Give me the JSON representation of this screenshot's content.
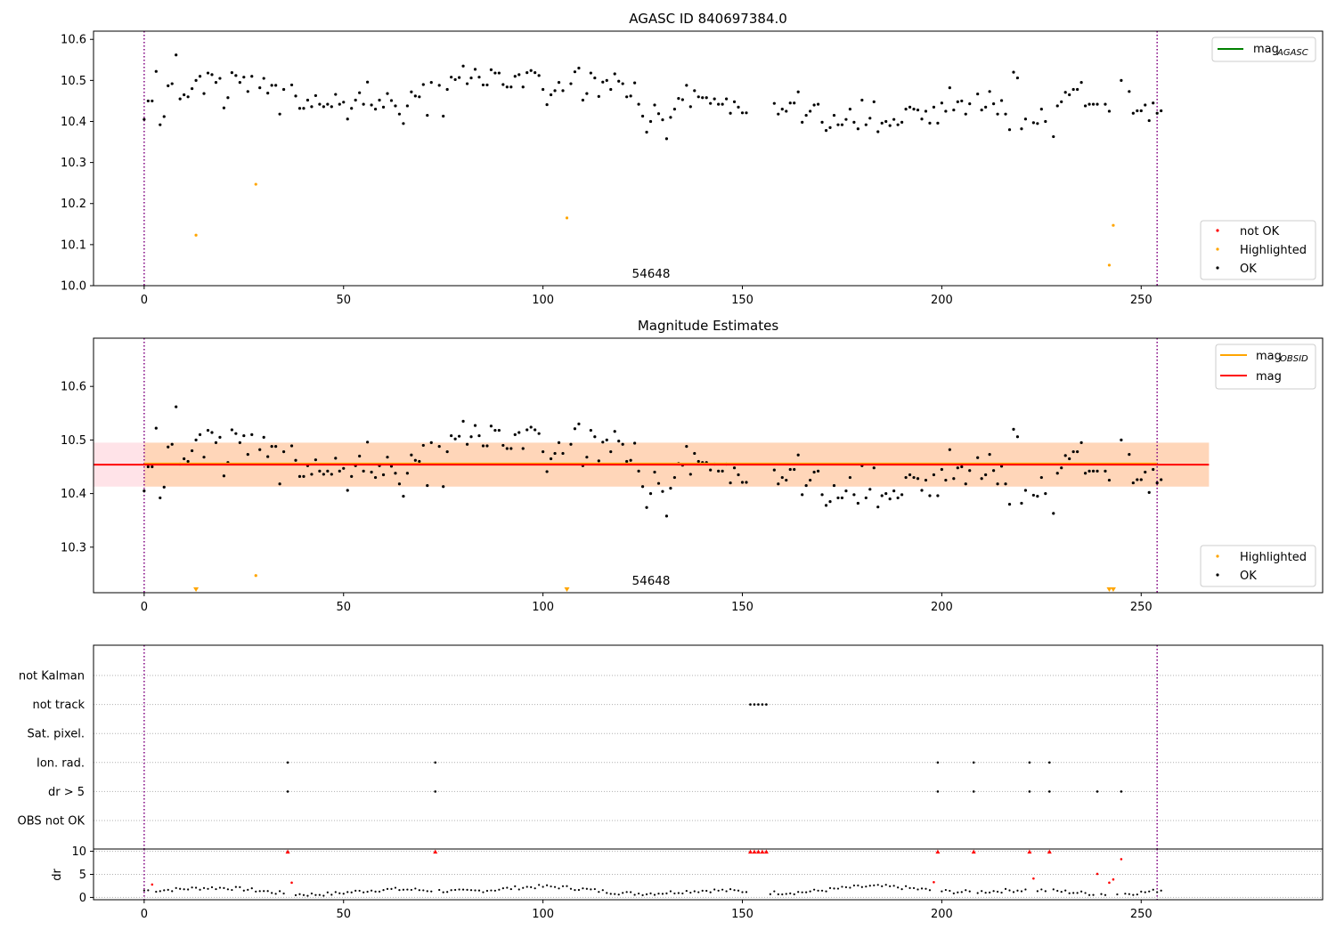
{
  "chart_data": [
    {
      "type": "scatter",
      "title": "AGASC ID 840697384.0",
      "xlabel": "",
      "ylabel": "",
      "xlim": [
        -12.7,
        295.5
      ],
      "ylim": [
        10.0,
        10.62
      ],
      "xticks": [
        0,
        50,
        100,
        150,
        200,
        250
      ],
      "yticks": [
        10.0,
        10.1,
        10.2,
        10.3,
        10.4,
        10.5,
        10.6
      ],
      "grid": false,
      "vlines": [
        0,
        254
      ],
      "annotation": {
        "text": "54648",
        "x": 127,
        "y": 10.02
      },
      "line_legend": {
        "placement": "top-right",
        "entries": [
          {
            "label": "mag",
            "sub": "AGASC",
            "color": "#008000"
          }
        ]
      },
      "marker_legend": {
        "placement": "bottom-right",
        "entries": [
          {
            "label": "not OK",
            "color": "#ff0000"
          },
          {
            "label": "Highlighted",
            "color": "#ffa500"
          },
          {
            "label": "OK",
            "color": "#000000"
          }
        ]
      },
      "highlighted_points": [
        [
          13,
          10.123
        ],
        [
          28,
          10.247
        ],
        [
          106,
          10.165
        ],
        [
          242,
          10.05
        ],
        [
          243,
          10.147
        ]
      ],
      "ok_series": {
        "name": "OK",
        "x_start": 0,
        "x_step": 1,
        "y": [
          10.405,
          10.45,
          10.45,
          10.522,
          10.392,
          10.412,
          10.487,
          10.492,
          10.562,
          10.455,
          10.465,
          10.46,
          10.48,
          10.5,
          10.51,
          10.468,
          10.518,
          10.514,
          10.495,
          10.505,
          10.433,
          10.458,
          10.519,
          10.512,
          10.495,
          10.508,
          10.473,
          10.51,
          null,
          10.482,
          10.505,
          10.469,
          10.488,
          10.488,
          10.418,
          10.478,
          null,
          10.489,
          10.462,
          10.432,
          10.432,
          10.452,
          10.436,
          10.463,
          10.442,
          10.436,
          10.442,
          10.436,
          10.466,
          10.442,
          10.447,
          10.406,
          10.432,
          10.452,
          10.47,
          10.442,
          10.496,
          10.44,
          10.43,
          10.452,
          10.435,
          10.468,
          10.451,
          10.438,
          10.418,
          10.395,
          10.438,
          10.472,
          10.462,
          10.46,
          10.49,
          10.415,
          10.495,
          null,
          10.488,
          10.413,
          10.478,
          10.508,
          10.502,
          10.507,
          10.535,
          10.492,
          10.506,
          10.527,
          10.508,
          10.489,
          10.489,
          10.526,
          10.518,
          10.518,
          10.49,
          10.484,
          10.484,
          10.51,
          10.514,
          10.484,
          10.519,
          10.524,
          10.519,
          10.512,
          10.478,
          10.441,
          10.465,
          10.475,
          10.495,
          10.475,
          null,
          10.492,
          10.521,
          10.53,
          10.452,
          10.468,
          10.518,
          10.506,
          10.461,
          10.496,
          10.5,
          10.478,
          10.516,
          10.498,
          10.492,
          10.46,
          10.462,
          10.494,
          10.442,
          10.413,
          10.374,
          10.4,
          10.44,
          10.419,
          10.404,
          10.358,
          10.41,
          10.43,
          10.456,
          10.453,
          10.488,
          10.436,
          10.475,
          10.46,
          10.458,
          10.458,
          10.444,
          10.455,
          10.442,
          10.442,
          10.455,
          10.42,
          10.448,
          10.435,
          10.421,
          10.421,
          null,
          null,
          null,
          null,
          null,
          null,
          10.444,
          10.418,
          10.43,
          10.425,
          10.445,
          10.445,
          10.472,
          10.398,
          10.415,
          10.425,
          10.44,
          10.442,
          10.398,
          10.378,
          10.385,
          10.415,
          10.392,
          10.392,
          10.405,
          10.43,
          10.398,
          10.382,
          10.452,
          10.392,
          10.408,
          10.448,
          10.375,
          10.396,
          10.4,
          10.39,
          10.405,
          10.392,
          10.398,
          10.43,
          10.435,
          10.43,
          10.428,
          10.406,
          10.425,
          10.396,
          10.435,
          10.396,
          10.445,
          10.425,
          10.482,
          10.428,
          10.448,
          10.45,
          10.418,
          10.443,
          null,
          10.467,
          10.428,
          10.435,
          10.473,
          10.443,
          10.418,
          10.451,
          10.418,
          10.38,
          10.52,
          10.506,
          10.382,
          10.406,
          null,
          10.397,
          10.395,
          10.43,
          10.4,
          null,
          10.363,
          10.438,
          10.448,
          10.471,
          10.465,
          10.478,
          10.478,
          10.495,
          10.438,
          10.442,
          10.442,
          10.442,
          null,
          10.442,
          10.425,
          null,
          null,
          10.5,
          null,
          10.473,
          10.42,
          10.426,
          10.426,
          10.44,
          10.402,
          10.445,
          10.42,
          10.426
        ]
      }
    },
    {
      "type": "scatter",
      "title": "Magnitude Estimates",
      "xlabel": "",
      "ylabel": "",
      "xlim": [
        -12.7,
        295.5
      ],
      "ylim": [
        10.215,
        10.69
      ],
      "xticks": [
        0,
        50,
        100,
        150,
        200,
        250
      ],
      "yticks": [
        10.3,
        10.4,
        10.5,
        10.6
      ],
      "grid": false,
      "vlines": [
        0,
        254
      ],
      "annotation": {
        "text": "54648",
        "x": 127,
        "y": 10.234
      },
      "bands": [
        {
          "x0": -12.7,
          "x1": 267,
          "y0": 10.413,
          "y1": 10.495,
          "color": "#ffc0cb",
          "opacity": 0.45
        },
        {
          "x0": 0,
          "x1": 267,
          "y0": 10.413,
          "y1": 10.495,
          "color": "#ffa500",
          "opacity": 0.2
        }
      ],
      "reference_lines": [
        {
          "name": "mag_OBSID",
          "x0": 0,
          "x1": 254,
          "y": 10.456,
          "color": "#ffa500"
        },
        {
          "name": "mag",
          "x0": -12.7,
          "x1": 267,
          "y": 10.454,
          "color": "#ff0000"
        }
      ],
      "line_legend": {
        "placement": "top-right",
        "entries": [
          {
            "label": "mag",
            "sub": "OBSID",
            "color": "#ffa500"
          },
          {
            "label": "mag",
            "sub": "",
            "color": "#ff0000"
          }
        ]
      },
      "marker_legend": {
        "placement": "bottom-right",
        "entries": [
          {
            "label": "Highlighted",
            "color": "#ffa500"
          },
          {
            "label": "OK",
            "color": "#000000"
          }
        ]
      },
      "highlighted_points": [
        [
          28,
          10.247
        ]
      ],
      "highlighted_below_range_x": [
        13,
        106,
        242,
        243
      ],
      "ok_series_ref": 0
    },
    {
      "type": "scatter",
      "title": "",
      "xlim": [
        -12.7,
        295.5
      ],
      "xticks": [
        0,
        50,
        100,
        150,
        200,
        250
      ],
      "vlines": [
        0,
        254
      ],
      "flag_categories": [
        "not Kalman",
        "not track",
        "Sat. pixel.",
        "Ion. rad.",
        "dr > 5",
        "OBS not OK"
      ],
      "flags": {
        "not track": [
          152,
          153,
          154,
          155,
          156
        ],
        "Ion. rad.": [
          36,
          73,
          199,
          208,
          222,
          227
        ],
        "dr > 5": [
          36,
          73,
          199,
          208,
          222,
          227,
          239,
          245
        ]
      }
    },
    {
      "type": "scatter",
      "title": "",
      "xlabel": "",
      "ylabel": "dr",
      "xlim": [
        -12.7,
        295.5
      ],
      "ylim": [
        -0.5,
        10.5
      ],
      "xticks": [
        0,
        50,
        100,
        150,
        200,
        250
      ],
      "yticks": [
        0,
        5,
        10
      ],
      "grid": true,
      "vlines": [
        0,
        254
      ],
      "clipped_at": 10,
      "clipped_x": [
        36,
        73,
        152,
        153,
        154,
        155,
        156,
        199,
        208,
        222,
        227
      ],
      "red_points": [
        [
          2,
          2.8
        ],
        [
          37,
          3.2
        ],
        [
          198,
          3.3
        ],
        [
          223,
          4.1
        ],
        [
          239,
          5.1
        ],
        [
          242,
          3.2
        ],
        [
          243,
          3.9
        ],
        [
          245,
          8.3
        ]
      ],
      "dr_seed": 7
    }
  ]
}
